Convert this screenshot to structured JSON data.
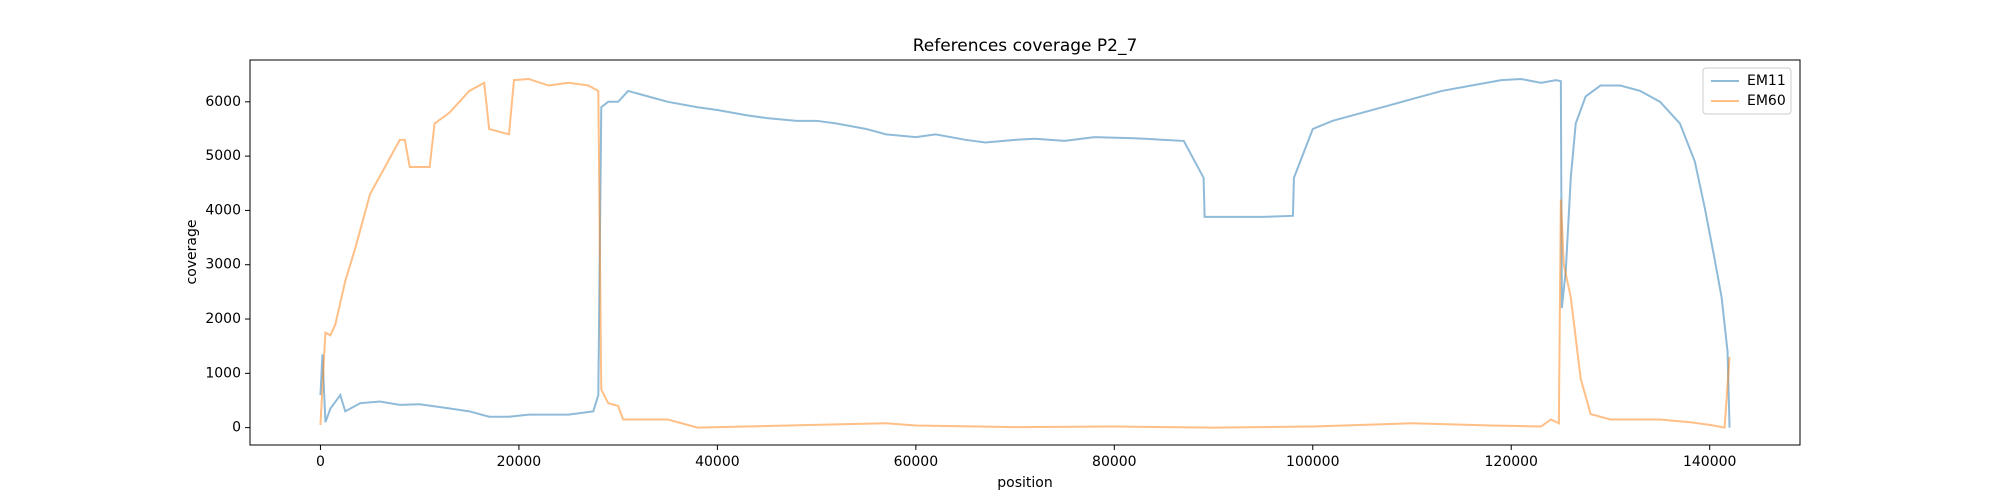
{
  "chart_data": {
    "type": "line",
    "title": "References coverage P2_7",
    "x_label": "position",
    "y_label": "coverage",
    "xlim": [
      -7100,
      149100
    ],
    "ylim": [
      -320,
      6770
    ],
    "xticks": [
      0,
      20000,
      40000,
      60000,
      80000,
      100000,
      120000,
      140000
    ],
    "yticks": [
      0,
      1000,
      2000,
      3000,
      4000,
      5000,
      6000
    ],
    "alpha": 0.5,
    "legend": "upper right",
    "series": [
      {
        "name": "EM11",
        "color": "#1f77b4",
        "x": [
          0,
          200,
          500,
          1000,
          2000,
          2500,
          4000,
          6000,
          8000,
          10000,
          12000,
          15000,
          17000,
          19000,
          21000,
          25000,
          27500,
          28000,
          28300,
          29000,
          30000,
          31000,
          33000,
          35000,
          38000,
          40000,
          43000,
          45000,
          48000,
          50000,
          52000,
          55000,
          57000,
          60000,
          62000,
          65000,
          67000,
          70000,
          72000,
          75000,
          78000,
          82000,
          85000,
          87000,
          89000,
          89100,
          95000,
          98000,
          98100,
          100000,
          102000,
          105000,
          108000,
          110000,
          113000,
          116000,
          119000,
          121000,
          123000,
          124500,
          125000,
          125100,
          125500,
          126000,
          126500,
          127500,
          129000,
          131000,
          133000,
          135000,
          137000,
          138500,
          139500,
          140500,
          141200,
          141800,
          142000
        ],
        "values": [
          600,
          1350,
          100,
          350,
          600,
          300,
          450,
          480,
          420,
          430,
          380,
          300,
          200,
          200,
          240,
          240,
          300,
          600,
          5900,
          6000,
          6000,
          6200,
          6100,
          6000,
          5900,
          5850,
          5750,
          5700,
          5650,
          5650,
          5600,
          5500,
          5400,
          5350,
          5400,
          5300,
          5250,
          5300,
          5320,
          5280,
          5350,
          5330,
          5300,
          5280,
          4600,
          3880,
          3880,
          3900,
          4600,
          5500,
          5650,
          5800,
          5950,
          6050,
          6200,
          6300,
          6400,
          6420,
          6350,
          6400,
          6380,
          2200,
          2900,
          4600,
          5600,
          6100,
          6300,
          6300,
          6200,
          6000,
          5600,
          4900,
          4050,
          3100,
          2400,
          1400,
          0
        ]
      },
      {
        "name": "EM60",
        "color": "#ff7f0e",
        "x": [
          0,
          500,
          1000,
          1500,
          2500,
          3500,
          5000,
          6500,
          8000,
          8500,
          9000,
          11000,
          11500,
          13000,
          15000,
          16500,
          17000,
          19000,
          19500,
          21000,
          23000,
          25000,
          27000,
          28000,
          28300,
          29000,
          30000,
          30500,
          35000,
          38000,
          45000,
          52000,
          57000,
          60000,
          70000,
          80000,
          90000,
          100000,
          110000,
          118000,
          123000,
          124000,
          124800,
          125000,
          125300,
          126000,
          127000,
          128000,
          130000,
          135000,
          138000,
          140000,
          141500,
          142000
        ],
        "values": [
          50,
          1750,
          1700,
          1900,
          2700,
          3300,
          4300,
          4800,
          5300,
          5300,
          4800,
          4800,
          5600,
          5800,
          6200,
          6350,
          5500,
          5400,
          6400,
          6420,
          6300,
          6350,
          6300,
          6200,
          700,
          450,
          400,
          150,
          150,
          0,
          30,
          60,
          80,
          40,
          10,
          20,
          0,
          20,
          80,
          40,
          20,
          150,
          80,
          4200,
          3000,
          2400,
          900,
          250,
          150,
          150,
          100,
          50,
          0,
          1300
        ]
      }
    ]
  }
}
